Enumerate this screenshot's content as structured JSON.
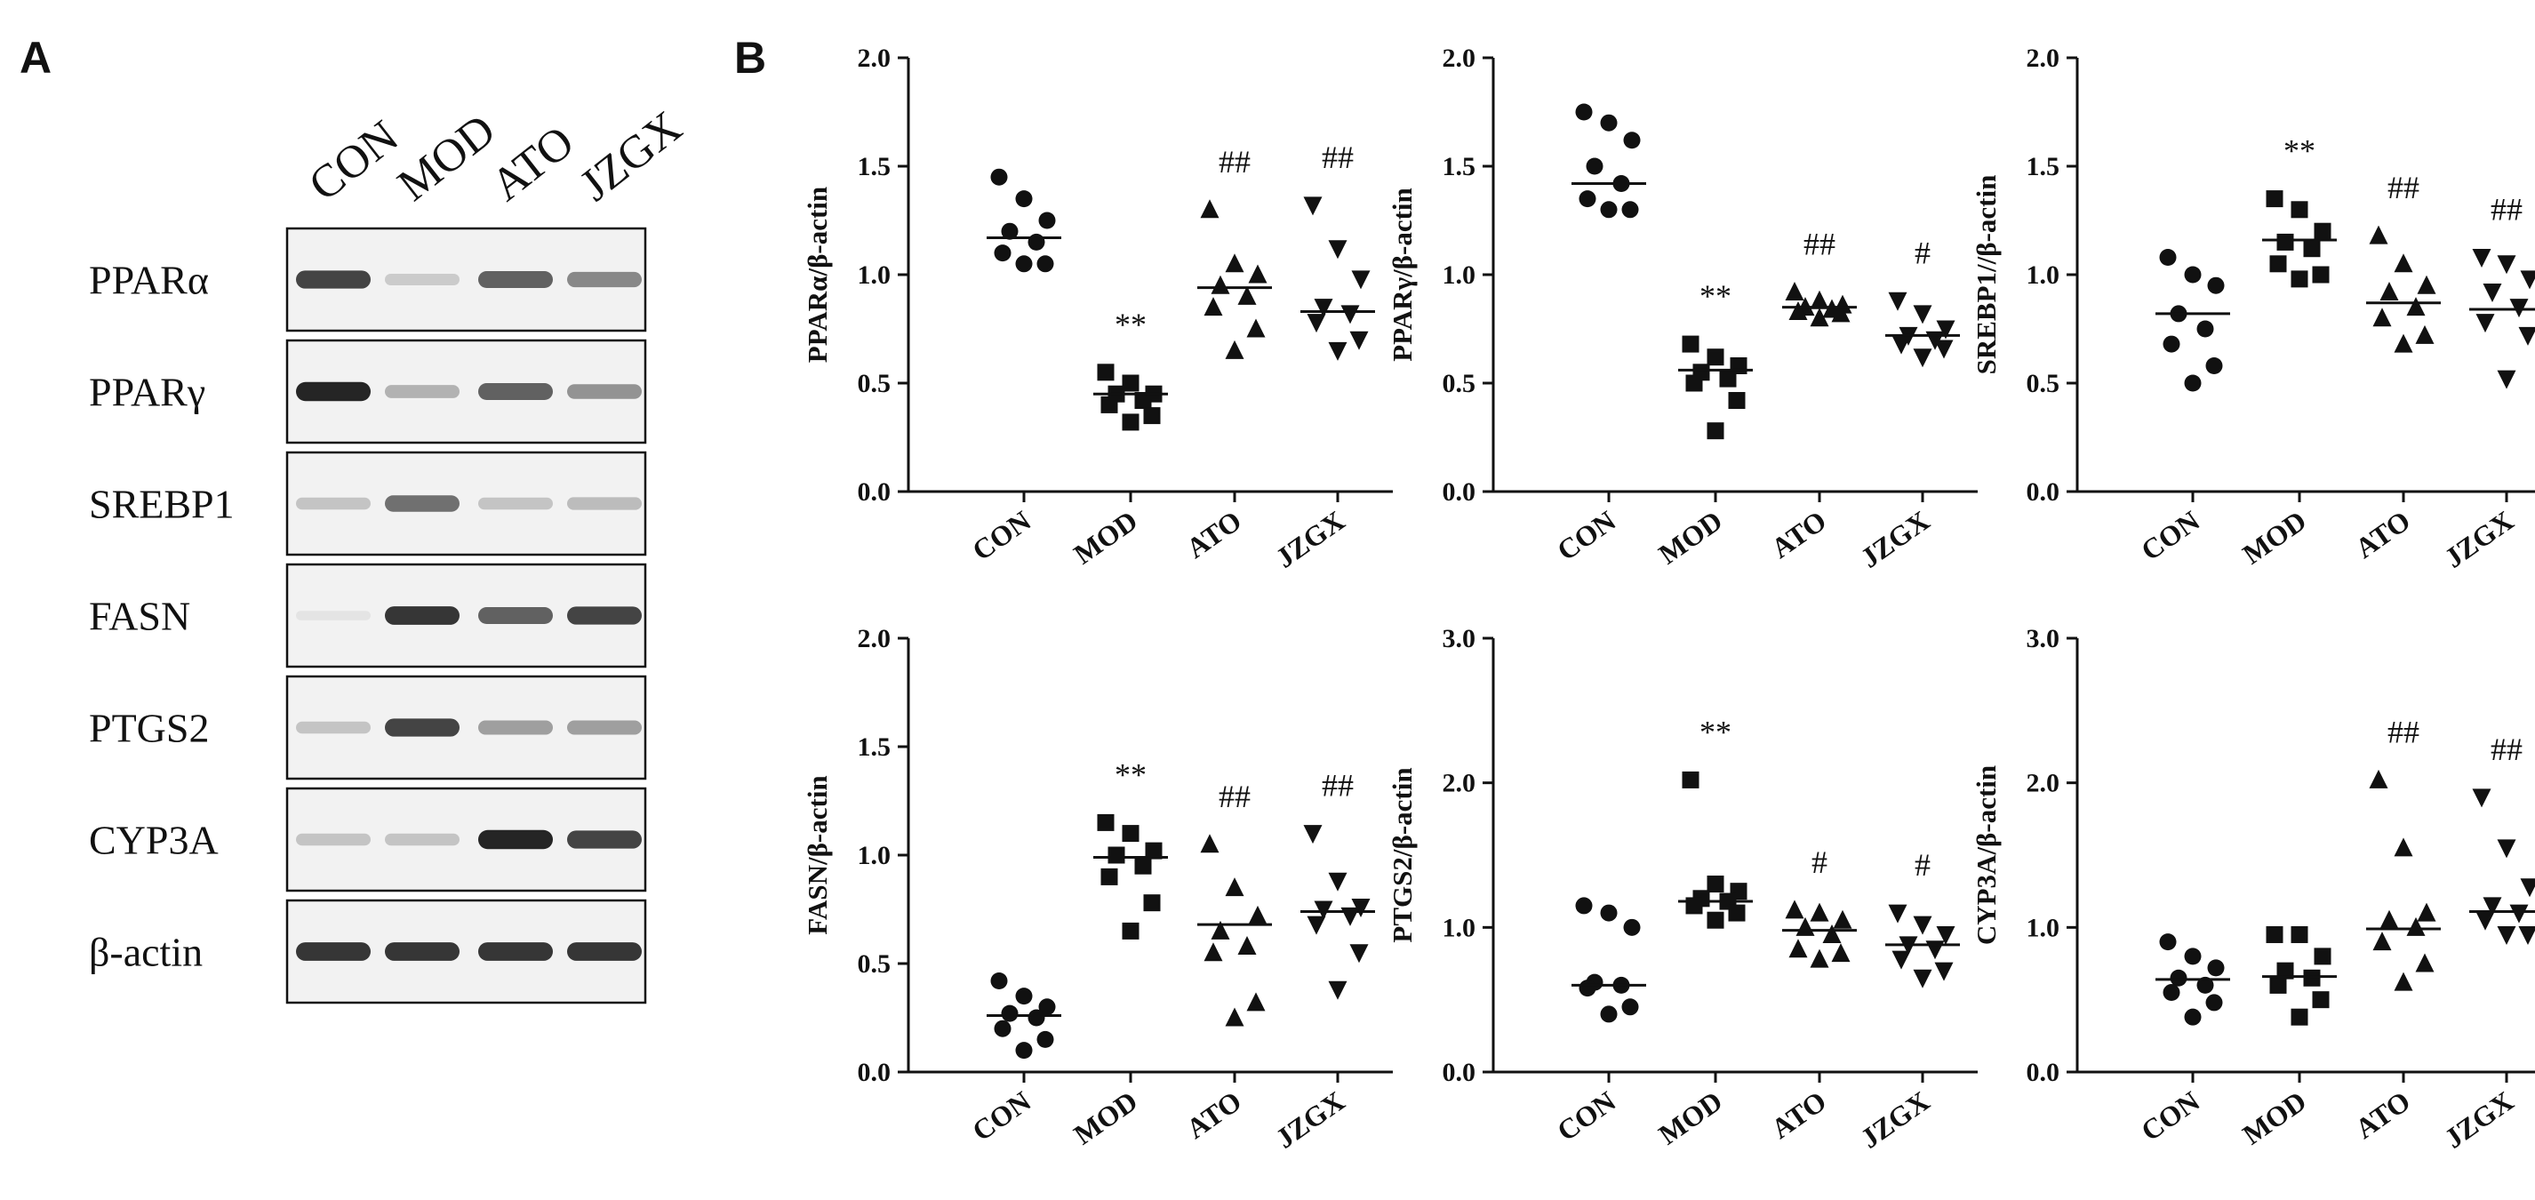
{
  "panel_labels": {
    "a": "A",
    "b": "B"
  },
  "blot": {
    "lanes": [
      "CON",
      "MOD",
      "ATO",
      "JZGX"
    ],
    "rows": [
      {
        "label": "PPARα",
        "intensity": [
          0.85,
          0.25,
          0.75,
          0.6
        ]
      },
      {
        "label": "PPARγ",
        "intensity": [
          0.95,
          0.4,
          0.75,
          0.55
        ]
      },
      {
        "label": "SREBP1",
        "intensity": [
          0.3,
          0.7,
          0.3,
          0.35
        ]
      },
      {
        "label": "FASN",
        "intensity": [
          0.05,
          0.9,
          0.75,
          0.85
        ]
      },
      {
        "label": "PTGS2",
        "intensity": [
          0.3,
          0.85,
          0.5,
          0.5
        ]
      },
      {
        "label": "CYP3A",
        "intensity": [
          0.3,
          0.3,
          0.95,
          0.85
        ]
      },
      {
        "label": "β-actin",
        "intensity": [
          0.9,
          0.9,
          0.9,
          0.9
        ]
      }
    ]
  },
  "chart_data": [
    {
      "type": "scatter",
      "ylabel": "PPARα/β-actin",
      "ylim": [
        0,
        2.0
      ],
      "yticks": [
        "0.0",
        "0.5",
        "1.0",
        "1.5",
        "2.0"
      ],
      "categories": [
        "CON",
        "MOD",
        "ATO",
        "JZGX"
      ],
      "markers": [
        "circle",
        "square",
        "triangle",
        "triangle-down"
      ],
      "points": [
        [
          1.45,
          1.35,
          1.25,
          1.2,
          1.15,
          1.1,
          1.05,
          1.05
        ],
        [
          0.55,
          0.5,
          0.45,
          0.45,
          0.42,
          0.4,
          0.35,
          0.32
        ],
        [
          1.3,
          1.05,
          1.0,
          0.95,
          0.9,
          0.85,
          0.75,
          0.65
        ],
        [
          1.32,
          1.12,
          0.98,
          0.85,
          0.82,
          0.78,
          0.7,
          0.65
        ]
      ],
      "medians": [
        1.17,
        0.45,
        0.94,
        0.83
      ],
      "annotations": [
        "",
        "**",
        "##",
        "##"
      ]
    },
    {
      "type": "scatter",
      "ylabel": "PPARγ/β-actin",
      "ylim": [
        0,
        2.0
      ],
      "yticks": [
        "0.0",
        "0.5",
        "1.0",
        "1.5",
        "2.0"
      ],
      "categories": [
        "CON",
        "MOD",
        "ATO",
        "JZGX"
      ],
      "markers": [
        "circle",
        "square",
        "triangle",
        "triangle-down"
      ],
      "points": [
        [
          1.75,
          1.7,
          1.62,
          1.5,
          1.42,
          1.35,
          1.3,
          1.3
        ],
        [
          0.68,
          0.62,
          0.58,
          0.55,
          0.52,
          0.5,
          0.42,
          0.28
        ],
        [
          0.92,
          0.88,
          0.86,
          0.85,
          0.84,
          0.83,
          0.82,
          0.8
        ],
        [
          0.88,
          0.82,
          0.75,
          0.72,
          0.7,
          0.68,
          0.66,
          0.62
        ]
      ],
      "medians": [
        1.42,
        0.56,
        0.85,
        0.72
      ],
      "annotations": [
        "",
        "**",
        "##",
        "#"
      ]
    },
    {
      "type": "scatter",
      "ylabel": "SREBP1//β-actin",
      "ylim": [
        0,
        2.0
      ],
      "yticks": [
        "0.0",
        "0.5",
        "1.0",
        "1.5",
        "2.0"
      ],
      "categories": [
        "CON",
        "MOD",
        "ATO",
        "JZGX"
      ],
      "markers": [
        "circle",
        "square",
        "triangle",
        "triangle-down"
      ],
      "points": [
        [
          1.08,
          1.0,
          0.95,
          0.82,
          0.75,
          0.68,
          0.58,
          0.5
        ],
        [
          1.35,
          1.3,
          1.2,
          1.15,
          1.12,
          1.05,
          1.0,
          0.98
        ],
        [
          1.18,
          1.05,
          0.95,
          0.92,
          0.85,
          0.8,
          0.72,
          0.68
        ],
        [
          1.08,
          1.05,
          0.98,
          0.92,
          0.85,
          0.78,
          0.72,
          0.52
        ]
      ],
      "medians": [
        0.82,
        1.16,
        0.87,
        0.84
      ],
      "annotations": [
        "",
        "**",
        "##",
        "##"
      ]
    },
    {
      "type": "scatter",
      "ylabel": "FASN/β-actin",
      "ylim": [
        0,
        2.0
      ],
      "yticks": [
        "0.0",
        "0.5",
        "1.0",
        "1.5",
        "2.0"
      ],
      "categories": [
        "CON",
        "MOD",
        "ATO",
        "JZGX"
      ],
      "markers": [
        "circle",
        "square",
        "triangle",
        "triangle-down"
      ],
      "points": [
        [
          0.42,
          0.35,
          0.3,
          0.27,
          0.25,
          0.2,
          0.15,
          0.1
        ],
        [
          1.15,
          1.1,
          1.02,
          1.0,
          0.95,
          0.9,
          0.78,
          0.65
        ],
        [
          1.05,
          0.85,
          0.72,
          0.65,
          0.58,
          0.55,
          0.32,
          0.25
        ],
        [
          1.1,
          0.88,
          0.76,
          0.75,
          0.72,
          0.68,
          0.55,
          0.38
        ]
      ],
      "medians": [
        0.26,
        0.99,
        0.68,
        0.74
      ],
      "annotations": [
        "",
        "**",
        "##",
        "##"
      ]
    },
    {
      "type": "scatter",
      "ylabel": "PTGS2/β-actin",
      "ylim": [
        0,
        3.0
      ],
      "yticks": [
        "0.0",
        "1.0",
        "2.0",
        "3.0"
      ],
      "categories": [
        "CON",
        "MOD",
        "ATO",
        "JZGX"
      ],
      "markers": [
        "circle",
        "square",
        "triangle",
        "triangle-down"
      ],
      "points": [
        [
          1.15,
          1.1,
          1.0,
          0.62,
          0.6,
          0.58,
          0.45,
          0.4
        ],
        [
          2.02,
          1.3,
          1.25,
          1.2,
          1.18,
          1.15,
          1.1,
          1.05
        ],
        [
          1.12,
          1.1,
          1.05,
          1.0,
          0.95,
          0.85,
          0.82,
          0.78
        ],
        [
          1.1,
          1.02,
          0.95,
          0.88,
          0.85,
          0.78,
          0.7,
          0.65
        ]
      ],
      "medians": [
        0.6,
        1.18,
        0.98,
        0.88
      ],
      "annotations": [
        "",
        "**",
        "#",
        "#"
      ]
    },
    {
      "type": "scatter",
      "ylabel": "CYP3A/β-actin",
      "ylim": [
        0,
        3.0
      ],
      "yticks": [
        "0.0",
        "1.0",
        "2.0",
        "3.0"
      ],
      "categories": [
        "CON",
        "MOD",
        "ATO",
        "JZGX"
      ],
      "markers": [
        "circle",
        "square",
        "triangle",
        "triangle-down"
      ],
      "points": [
        [
          0.9,
          0.8,
          0.72,
          0.65,
          0.6,
          0.55,
          0.48,
          0.38
        ],
        [
          0.95,
          0.95,
          0.8,
          0.7,
          0.65,
          0.6,
          0.5,
          0.38
        ],
        [
          2.02,
          1.55,
          1.1,
          1.05,
          1.0,
          0.9,
          0.75,
          0.62
        ],
        [
          1.9,
          1.55,
          1.28,
          1.15,
          1.1,
          1.05,
          0.95,
          0.95
        ]
      ],
      "medians": [
        0.64,
        0.66,
        0.99,
        1.11
      ],
      "annotations": [
        "",
        "",
        "##",
        "##"
      ]
    }
  ]
}
